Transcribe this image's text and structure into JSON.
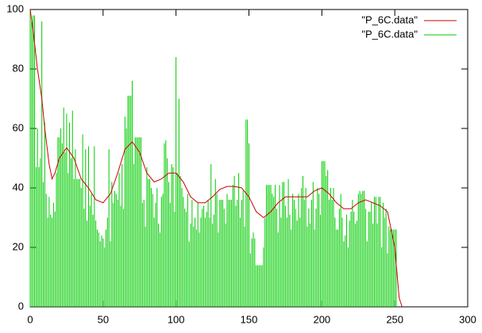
{
  "chart_data": {
    "type": "line",
    "xlim": [
      0,
      300
    ],
    "xticks": [
      0,
      50,
      100,
      150,
      200,
      250,
      300
    ],
    "ylim": [
      0,
      100
    ],
    "yticks": [
      0,
      20,
      40,
      60,
      80,
      100
    ],
    "legend": "top-right",
    "series": [
      {
        "name": "\"P_6C.data\"",
        "color": "#cc0000",
        "style": "lines",
        "x": [
          0,
          2,
          5,
          8,
          10,
          13,
          15,
          17,
          20,
          25,
          30,
          35,
          40,
          45,
          50,
          55,
          60,
          65,
          70,
          75,
          80,
          85,
          90,
          95,
          100,
          105,
          110,
          115,
          120,
          125,
          130,
          135,
          140,
          145,
          150,
          155,
          160,
          165,
          170,
          175,
          180,
          185,
          190,
          195,
          200,
          205,
          210,
          215,
          220,
          225,
          230,
          235,
          240,
          245,
          250,
          253,
          255
        ],
        "values": [
          100,
          93,
          80,
          70,
          60,
          48,
          43,
          45,
          50,
          53.5,
          50,
          43,
          40,
          36,
          35,
          38,
          45,
          53,
          55.5,
          52,
          45,
          42,
          43,
          45,
          45,
          42,
          37,
          35,
          35,
          37,
          39.5,
          40.5,
          40.5,
          40,
          37,
          32,
          30,
          32,
          35,
          37,
          37,
          37,
          37,
          39,
          40,
          38,
          35,
          33,
          33,
          35,
          36,
          35,
          34,
          32,
          20,
          3,
          0
        ]
      },
      {
        "name": "\"P_6C.data\"",
        "color": "#00cc00",
        "style": "impulses",
        "x": [
          0,
          1,
          2,
          3,
          4,
          5,
          6,
          7,
          8,
          9,
          10,
          11,
          12,
          13,
          14,
          15,
          16,
          17,
          18,
          19,
          20,
          21,
          22,
          23,
          24,
          25,
          26,
          27,
          28,
          29,
          30,
          31,
          32,
          33,
          34,
          35,
          36,
          37,
          38,
          39,
          40,
          41,
          42,
          43,
          44,
          45,
          46,
          47,
          48,
          49,
          50,
          51,
          52,
          53,
          54,
          55,
          56,
          57,
          58,
          59,
          60,
          61,
          62,
          63,
          64,
          65,
          66,
          67,
          68,
          69,
          70,
          71,
          72,
          73,
          74,
          75,
          76,
          77,
          78,
          79,
          80,
          81,
          82,
          83,
          84,
          85,
          86,
          87,
          88,
          89,
          90,
          91,
          92,
          93,
          94,
          95,
          96,
          97,
          98,
          99,
          100,
          101,
          102,
          103,
          104,
          105,
          106,
          107,
          108,
          109,
          110,
          111,
          112,
          113,
          114,
          115,
          116,
          117,
          118,
          119,
          120,
          121,
          122,
          123,
          124,
          125,
          126,
          127,
          128,
          129,
          130,
          131,
          132,
          133,
          134,
          135,
          136,
          137,
          138,
          139,
          140,
          141,
          142,
          143,
          144,
          145,
          146,
          147,
          148,
          149,
          150,
          151,
          152,
          153,
          154,
          155,
          156,
          157,
          158,
          159,
          160,
          161,
          162,
          163,
          164,
          165,
          166,
          167,
          168,
          169,
          170,
          171,
          172,
          173,
          174,
          175,
          176,
          177,
          178,
          179,
          180,
          181,
          182,
          183,
          184,
          185,
          186,
          187,
          188,
          189,
          190,
          191,
          192,
          193,
          194,
          195,
          196,
          197,
          198,
          199,
          200,
          201,
          202,
          203,
          204,
          205,
          206,
          207,
          208,
          209,
          210,
          211,
          212,
          213,
          214,
          215,
          216,
          217,
          218,
          219,
          220,
          221,
          222,
          223,
          224,
          225,
          226,
          227,
          228,
          229,
          230,
          231,
          232,
          233,
          234,
          235,
          236,
          237,
          238,
          239,
          240,
          241,
          242,
          243,
          244,
          245,
          246,
          247,
          248,
          249,
          250,
          251
        ],
        "values": [
          100,
          96,
          98,
          98,
          47,
          60,
          47,
          50,
          96,
          42,
          62,
          38,
          30,
          37,
          31,
          30,
          35,
          32,
          45,
          57,
          57,
          60,
          55,
          67,
          52,
          65,
          45,
          62,
          50,
          66,
          43,
          53,
          43,
          43,
          43,
          40,
          58,
          33,
          53,
          29,
          54,
          34,
          38,
          31,
          54,
          29,
          26,
          25,
          22,
          24,
          23,
          20,
          26,
          30,
          53,
          22,
          42,
          35,
          39,
          38,
          36,
          45,
          34,
          48,
          33,
          64,
          60,
          71,
          71,
          71,
          76,
          48,
          57,
          57,
          57,
          57,
          57,
          35,
          36,
          27,
          47,
          43,
          43,
          40,
          38,
          30,
          35,
          40,
          28,
          25,
          37,
          38,
          55,
          56,
          50,
          42,
          35,
          48,
          47,
          32,
          84,
          45,
          70,
          44,
          40,
          37,
          33,
          32,
          38,
          22,
          28,
          36,
          27,
          30,
          26,
          35,
          25,
          30,
          33,
          34,
          30,
          32,
          36,
          30,
          48,
          28,
          31,
          43,
          38,
          25,
          36,
          36,
          36,
          33,
          28,
          38,
          36,
          36,
          36,
          41,
          44,
          34,
          36,
          45,
          30,
          36,
          39,
          27,
          63,
          63,
          55,
          18,
          23,
          25,
          23,
          14,
          14,
          14,
          14,
          14,
          20,
          30,
          41,
          41,
          41,
          41,
          38,
          37,
          41,
          33,
          25,
          41,
          30,
          42,
          42,
          34,
          30,
          43,
          31,
          26,
          38,
          36,
          33,
          29,
          38,
          30,
          40,
          44,
          36,
          40,
          27,
          33,
          28,
          36,
          42,
          26,
          33,
          40,
          38,
          31,
          49,
          49,
          49,
          44,
          46,
          36,
          40,
          36,
          40,
          30,
          26,
          26,
          33,
          38,
          30,
          22,
          24,
          31,
          20,
          29,
          32,
          36,
          32,
          28,
          29,
          38,
          39,
          38,
          39,
          39,
          33,
          22,
          32,
          32,
          35,
          28,
          37,
          37,
          28,
          37,
          37,
          20,
          35,
          30,
          33,
          18,
          27,
          26,
          26,
          26,
          26,
          26
        ]
      }
    ]
  }
}
